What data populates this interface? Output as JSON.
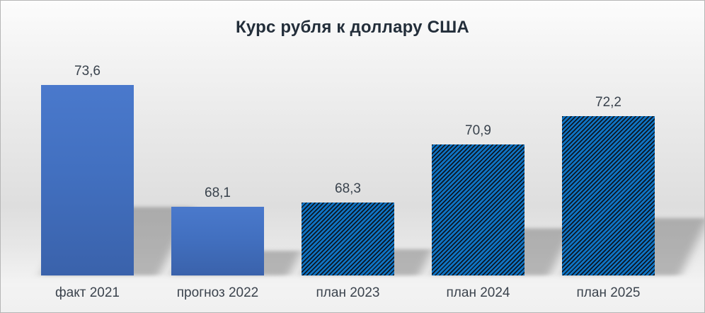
{
  "title": "Курс рубля к доллару США",
  "chart_data": {
    "type": "bar",
    "title": "Курс рубля к доллару США",
    "categories": [
      "факт 2021",
      "прогноз 2022",
      "план 2023",
      "план 2024",
      "план 2025"
    ],
    "values": [
      73.6,
      68.1,
      68.3,
      70.9,
      72.2
    ],
    "value_labels": [
      "73,6",
      "68,1",
      "68,3",
      "70,9",
      "72,2"
    ],
    "patterns": [
      "solid",
      "solid",
      "hatch",
      "hatch",
      "hatch"
    ],
    "xlabel": "",
    "ylabel": "",
    "ylim": [
      65,
      75.2
    ],
    "grid": false,
    "legend": false,
    "axis_lines": false,
    "colors": {
      "solid_bar_top": "#4a79cc",
      "solid_bar_bottom": "#3a62ab",
      "hatch_background_blue": "#0f74c4",
      "hatch_stripe_dark": "#0c1622",
      "title_text": "#232e3a",
      "label_text": "#39424c",
      "chart_background_top": "#fcfcfc",
      "chart_background_mid": "#dedede"
    }
  }
}
